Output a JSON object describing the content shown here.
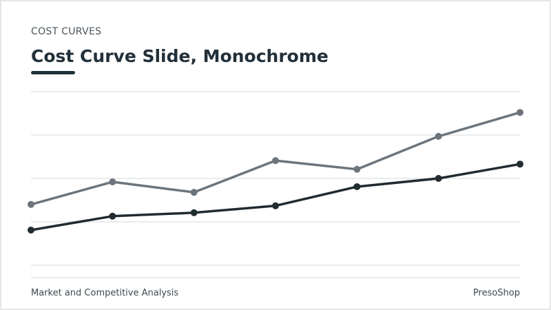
{
  "chart_data": {
    "type": "line",
    "subtitle": "COST CURVES",
    "title": "Cost Curve Slide, Monochrome",
    "categories": [
      null,
      null,
      null,
      null,
      null,
      null,
      null
    ],
    "series": [
      {
        "color": "#6c757d",
        "values": [
          1.4,
          1.92,
          1.68,
          2.41,
          2.21,
          2.97,
          3.52
        ]
      },
      {
        "color": "#212b30",
        "values": [
          0.81,
          1.13,
          1.21,
          1.37,
          1.81,
          2.0,
          2.33
        ]
      }
    ],
    "ylim": [
      0,
      4
    ],
    "yticks": [
      0,
      1,
      2,
      3,
      4
    ],
    "grid": true
  },
  "footer": {
    "left": "Market and Competitive Analysis",
    "right": "PresoShop"
  }
}
